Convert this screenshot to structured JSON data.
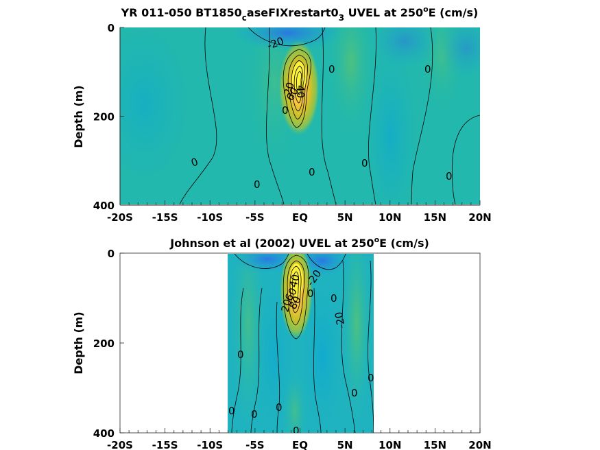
{
  "chart_data": [
    {
      "type": "heatmap",
      "title": "YR 011-050 BT1850",
      "title_sub1": "c",
      "title_mid": "aseFIXrestart0",
      "title_sub2": "3",
      "title_tail": " UVEL at 250",
      "title_sup": "o",
      "title_end": "E (cm/s)",
      "ylabel": "Depth (m)",
      "xlim": [
        -20,
        20
      ],
      "ylim": [
        400,
        0
      ],
      "xticks": [
        -20,
        -15,
        -10,
        -5,
        0,
        5,
        10,
        15,
        20
      ],
      "xtick_labels": [
        "-20S",
        "-15S",
        "-10S",
        "-5S",
        "EQ",
        "5N",
        "10N",
        "15N",
        "20N"
      ],
      "yticks": [
        0,
        200,
        400
      ],
      "ytick_labels": [
        "0",
        "200",
        "400"
      ],
      "data_lon_range": [
        -20,
        20
      ],
      "contour_labels": [
        "-20",
        "0",
        "0",
        "0",
        "0",
        "0",
        "0",
        "0",
        "0",
        "20",
        "40",
        "60"
      ],
      "features": {
        "eucu_core": {
          "lat": 0,
          "depth": 110,
          "max_cm_s": 90
        },
        "westward_surface_min": {
          "lat": -1,
          "depth": 20,
          "value_cm_s": -25
        }
      }
    },
    {
      "type": "heatmap",
      "title": "Johnson et al (2002) UVEL at 250",
      "title_sup": "o",
      "title_end": "E (cm/s)",
      "ylabel": "Depth (m)",
      "xlim": [
        -20,
        20
      ],
      "ylim": [
        400,
        0
      ],
      "xticks": [
        -20,
        -15,
        -10,
        -5,
        0,
        5,
        10,
        15,
        20
      ],
      "xtick_labels": [
        "-20S",
        "-15S",
        "-10S",
        "-5S",
        "EQ",
        "5N",
        "10N",
        "15N",
        "20N"
      ],
      "yticks": [
        0,
        200,
        400
      ],
      "ytick_labels": [
        "0",
        "200",
        "400"
      ],
      "data_lon_range": [
        -8,
        8
      ],
      "contour_labels": [
        "-20",
        "-20",
        "0",
        "0",
        "0",
        "0",
        "0",
        "0",
        "0",
        "0",
        "0",
        "20",
        "40",
        "60",
        "80"
      ],
      "features": {
        "eucu_core": {
          "lat": 0,
          "depth": 80,
          "max_cm_s": 100
        },
        "westward_surface_min": {
          "lat": 0,
          "depth": 10,
          "value_cm_s": -30
        }
      }
    }
  ]
}
